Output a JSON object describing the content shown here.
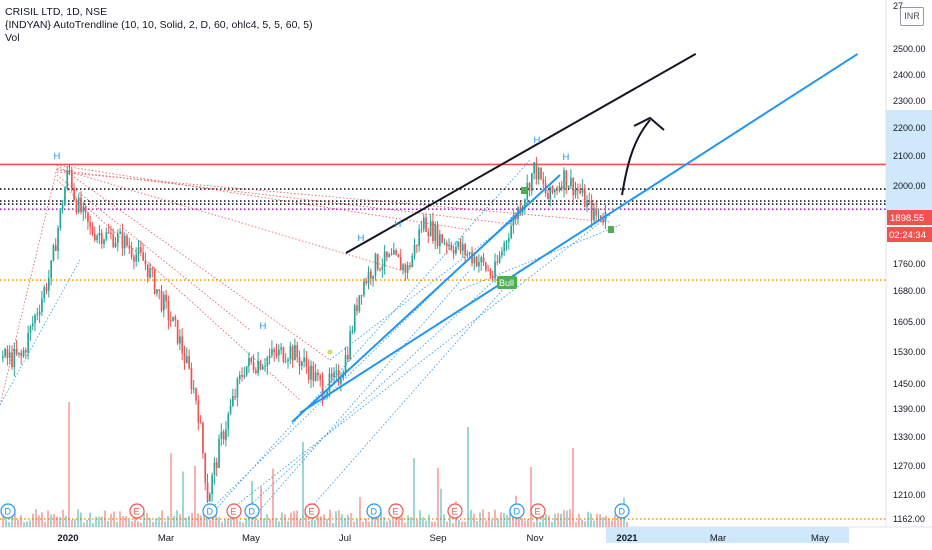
{
  "header": {
    "symbol_line": "CRISIL LTD, 1D, NSE",
    "indicator_line": "{INDYAN} AutoTrendline (10, 10, Solid, 2, D, 60, ohlc4, 5, 5, 60, 5)",
    "volume_label": "Vol",
    "currency": "INR",
    "top_axis_partial": "27..."
  },
  "price_scale": {
    "ticks": [
      "2500.00",
      "2400.00",
      "2300.00",
      "2200.00",
      "2100.00",
      "2000.00",
      "1898.55",
      "1760.00",
      "1680.00",
      "1605.00",
      "1530.00",
      "1450.00",
      "1390.00",
      "1330.00",
      "1270.00",
      "1210.00",
      "1162.00"
    ],
    "last_price_label": "1898.55",
    "countdown_label": "02:24:34"
  },
  "time_scale": {
    "labels": [
      "2020",
      "Mar",
      "May",
      "Jul",
      "Sep",
      "Nov",
      "2021",
      "Mar",
      "May"
    ]
  },
  "markers": {
    "pivot_highs": [
      "H",
      "H",
      "H",
      "H",
      "H",
      "H"
    ],
    "bull_label": "Bull",
    "events": [
      "D",
      "E",
      "D",
      "E",
      "D",
      "E",
      "D",
      "E",
      "E",
      "D",
      "E",
      "D"
    ]
  },
  "chart_data": {
    "type": "candlestick",
    "title": "CRISIL LTD, 1D, NSE",
    "xlabel": "",
    "ylabel": "",
    "x_range": [
      "2019-12",
      "2021-05"
    ],
    "y_axis_scale": "log",
    "y_ticks": [
      2500,
      2400,
      2300,
      2200,
      2100,
      2000,
      1898.55,
      1760,
      1680,
      1605,
      1530,
      1450,
      1390,
      1330,
      1270,
      1210,
      1162
    ],
    "last_price": 1898.55,
    "horizontal_levels": [
      {
        "value": 2070,
        "style": "solid",
        "color": "#ef5350"
      },
      {
        "value": 1985,
        "style": "dotted",
        "color": "#131722"
      },
      {
        "value": 1945,
        "style": "dotted",
        "color": "#131722"
      },
      {
        "value": 1935,
        "style": "dotted",
        "color": "#131722"
      },
      {
        "value": 1918,
        "style": "dotted",
        "color": "#9c27b0"
      },
      {
        "value": 1700,
        "style": "dotted",
        "color": "#ff9800"
      },
      {
        "value": 1162,
        "style": "dotted",
        "color": "#ff9800"
      }
    ],
    "price_path": [
      [
        "2019-12-01",
        1500
      ],
      [
        "2019-12-20",
        1720
      ],
      [
        "2020-01-01",
        2060
      ],
      [
        "2020-01-05",
        1950
      ],
      [
        "2020-01-15",
        1850
      ],
      [
        "2020-02-05",
        1820
      ],
      [
        "2020-02-20",
        1750
      ],
      [
        "2020-03-01",
        1650
      ],
      [
        "2020-03-12",
        1560
      ],
      [
        "2020-03-25",
        1400
      ],
      [
        "2020-04-01",
        1200
      ],
      [
        "2020-04-10",
        1320
      ],
      [
        "2020-04-25",
        1480
      ],
      [
        "2020-05-10",
        1500
      ],
      [
        "2020-05-25",
        1520
      ],
      [
        "2020-06-05",
        1480
      ],
      [
        "2020-06-15",
        1430
      ],
      [
        "2020-06-25",
        1450
      ],
      [
        "2020-07-01",
        1510
      ],
      [
        "2020-07-10",
        1680
      ],
      [
        "2020-07-20",
        1750
      ],
      [
        "2020-08-01",
        1760
      ],
      [
        "2020-08-10",
        1730
      ],
      [
        "2020-08-20",
        1880
      ],
      [
        "2020-08-30",
        1830
      ],
      [
        "2020-09-10",
        1800
      ],
      [
        "2020-09-25",
        1760
      ],
      [
        "2020-10-05",
        1710
      ],
      [
        "2020-10-15",
        1850
      ],
      [
        "2020-10-25",
        1960
      ],
      [
        "2020-11-01",
        2060
      ],
      [
        "2020-11-10",
        1950
      ],
      [
        "2020-11-20",
        2030
      ],
      [
        "2020-12-01",
        1970
      ],
      [
        "2020-12-10",
        1895
      ],
      [
        "2020-12-18",
        1898.55
      ]
    ],
    "trendlines": [
      {
        "name": "",
        "color": "#131722",
        "from": [
          "2020-07-01",
          1780
        ],
        "to": [
          "2021-02-15",
          2480
        ]
      },
      {
        "name": "",
        "color": "#2196f3",
        "from": [
          "2020-06-01",
          1375
        ],
        "to": [
          "2021-06-01",
          2480
        ]
      }
    ],
    "volume_series": "shown"
  }
}
